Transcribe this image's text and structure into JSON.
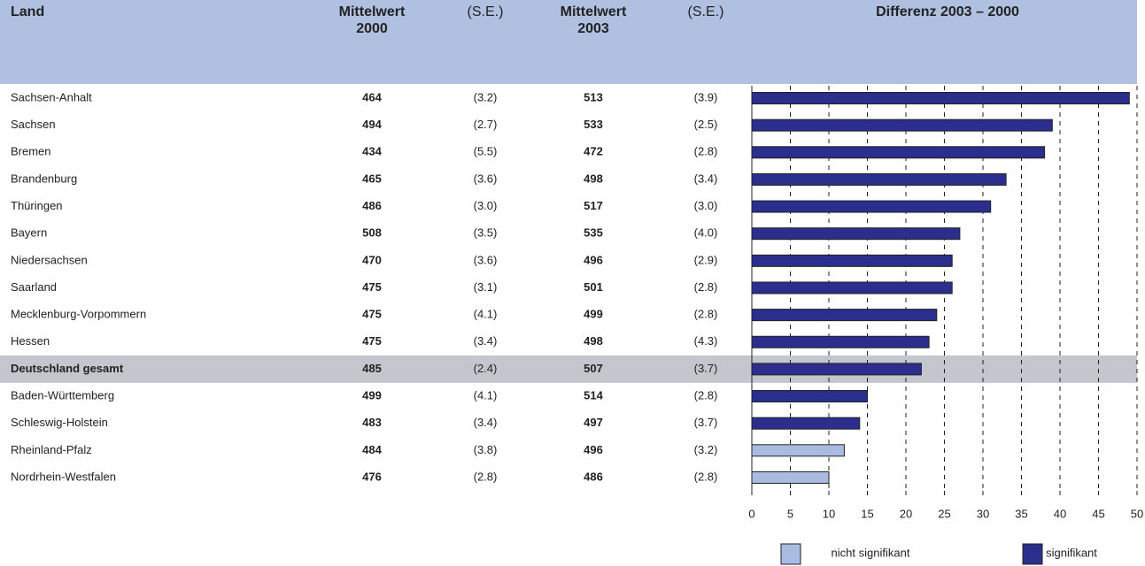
{
  "table": {
    "headers": [
      "Land",
      "Mittelwert 2000",
      "(S.E.)",
      "Mittelwert 2003",
      "(S.E.)"
    ],
    "rows": [
      [
        "Sachsen-Anhalt",
        "464",
        "(3.2)",
        "513",
        "(3.9)"
      ],
      [
        "Sachsen",
        "494",
        "(2.7)",
        "533",
        "(2.5)"
      ],
      [
        "Bremen",
        "434",
        "(5.5)",
        "472",
        "(2.8)"
      ],
      [
        "Brandenburg",
        "465",
        "(3.6)",
        "498",
        "(3.4)"
      ],
      [
        "Thüringen",
        "486",
        "(3.0)",
        "517",
        "(3.0)"
      ],
      [
        "Bayern",
        "508",
        "(3.5)",
        "535",
        "(4.0)"
      ],
      [
        "Niedersachsen",
        "470",
        "(3.6)",
        "496",
        "(2.9)"
      ],
      [
        "Saarland",
        "475",
        "(3.1)",
        "501",
        "(2.8)"
      ],
      [
        "Mecklenburg-Vorpommern",
        "475",
        "(4.1)",
        "499",
        "(2.8)"
      ],
      [
        "Hessen",
        "475",
        "(3.4)",
        "498",
        "(4.3)"
      ],
      [
        "Deutschland gesamt",
        "485",
        "(2.4)",
        "507",
        "(3.7)"
      ],
      [
        "Baden-Württemberg",
        "499",
        "(4.1)",
        "514",
        "(2.8)"
      ],
      [
        "Schleswig-Holstein",
        "483",
        "(3.4)",
        "497",
        "(3.7)"
      ],
      [
        "Rheinland-Pfalz",
        "484",
        "(3.8)",
        "496",
        "(3.2)"
      ],
      [
        "Nordrhein-Westfalen",
        "476",
        "(2.8)",
        "486",
        "(2.8)"
      ]
    ],
    "highlight_row": 10
  },
  "chart_data": {
    "type": "bar",
    "orientation": "horizontal",
    "title": "Differenz 2003 – 2000",
    "values": [
      49,
      39,
      38,
      33,
      31,
      27,
      26,
      26,
      24,
      23,
      22,
      15,
      14,
      12,
      10
    ],
    "colors": [
      "#2b2e8c",
      "#2b2e8c",
      "#2b2e8c",
      "#2b2e8c",
      "#2b2e8c",
      "#2b2e8c",
      "#2b2e8c",
      "#2b2e8c",
      "#2b2e8c",
      "#2b2e8c",
      "#2b2e8c",
      "#2b2e8c",
      "#2b2e8c",
      "#a9bbe0",
      "#a9bbe0"
    ],
    "xlim": [
      0,
      50
    ],
    "xticks": [
      0,
      5,
      10,
      15,
      20,
      25,
      30,
      35,
      40,
      45,
      50
    ],
    "grid": true,
    "legend": [
      {
        "name": "nicht signifikant",
        "color": "#a9bbe0"
      },
      {
        "name": "signifikant",
        "color": "#2b2e8c"
      }
    ]
  }
}
